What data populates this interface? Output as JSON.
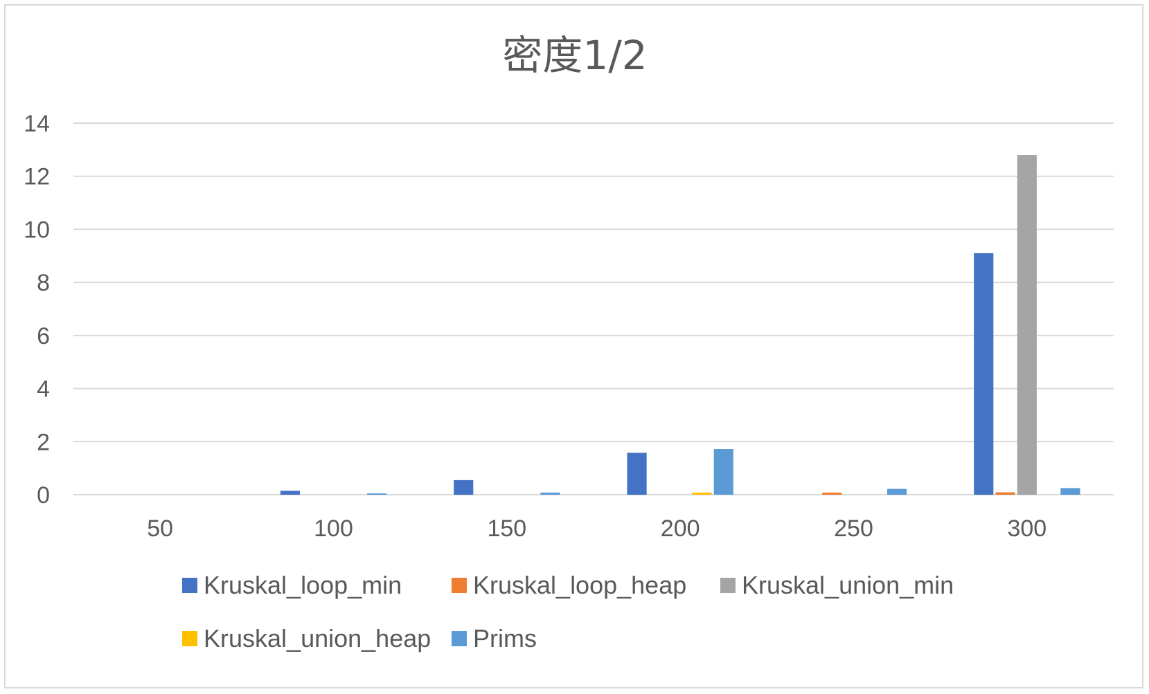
{
  "chart_data": {
    "type": "bar",
    "title": "密度1/2",
    "xlabel": "",
    "ylabel": "",
    "categories": [
      "50",
      "100",
      "150",
      "200",
      "250",
      "300"
    ],
    "ylim": [
      0,
      14
    ],
    "yticks": [
      0,
      2,
      4,
      6,
      8,
      10,
      12,
      14
    ],
    "grid": true,
    "legend_position": "bottom",
    "series": [
      {
        "name": "Kruskal_loop_min",
        "color": "#4472C4",
        "values": [
          0,
          0.15,
          0.55,
          1.58,
          0,
          9.1
        ]
      },
      {
        "name": "Kruskal_loop_heap",
        "color": "#ED7D31",
        "values": [
          0,
          0,
          0,
          0,
          0.08,
          0.09
        ]
      },
      {
        "name": "Kruskal_union_min",
        "color": "#A5A5A5",
        "values": [
          0,
          0,
          0,
          0,
          0,
          12.8
        ]
      },
      {
        "name": "Kruskal_union_heap",
        "color": "#FFC000",
        "values": [
          0,
          0,
          0,
          0.08,
          0,
          0
        ]
      },
      {
        "name": "Prims",
        "color": "#5B9BD5",
        "values": [
          0,
          0.05,
          0.08,
          1.72,
          0.22,
          0.25
        ]
      }
    ]
  }
}
